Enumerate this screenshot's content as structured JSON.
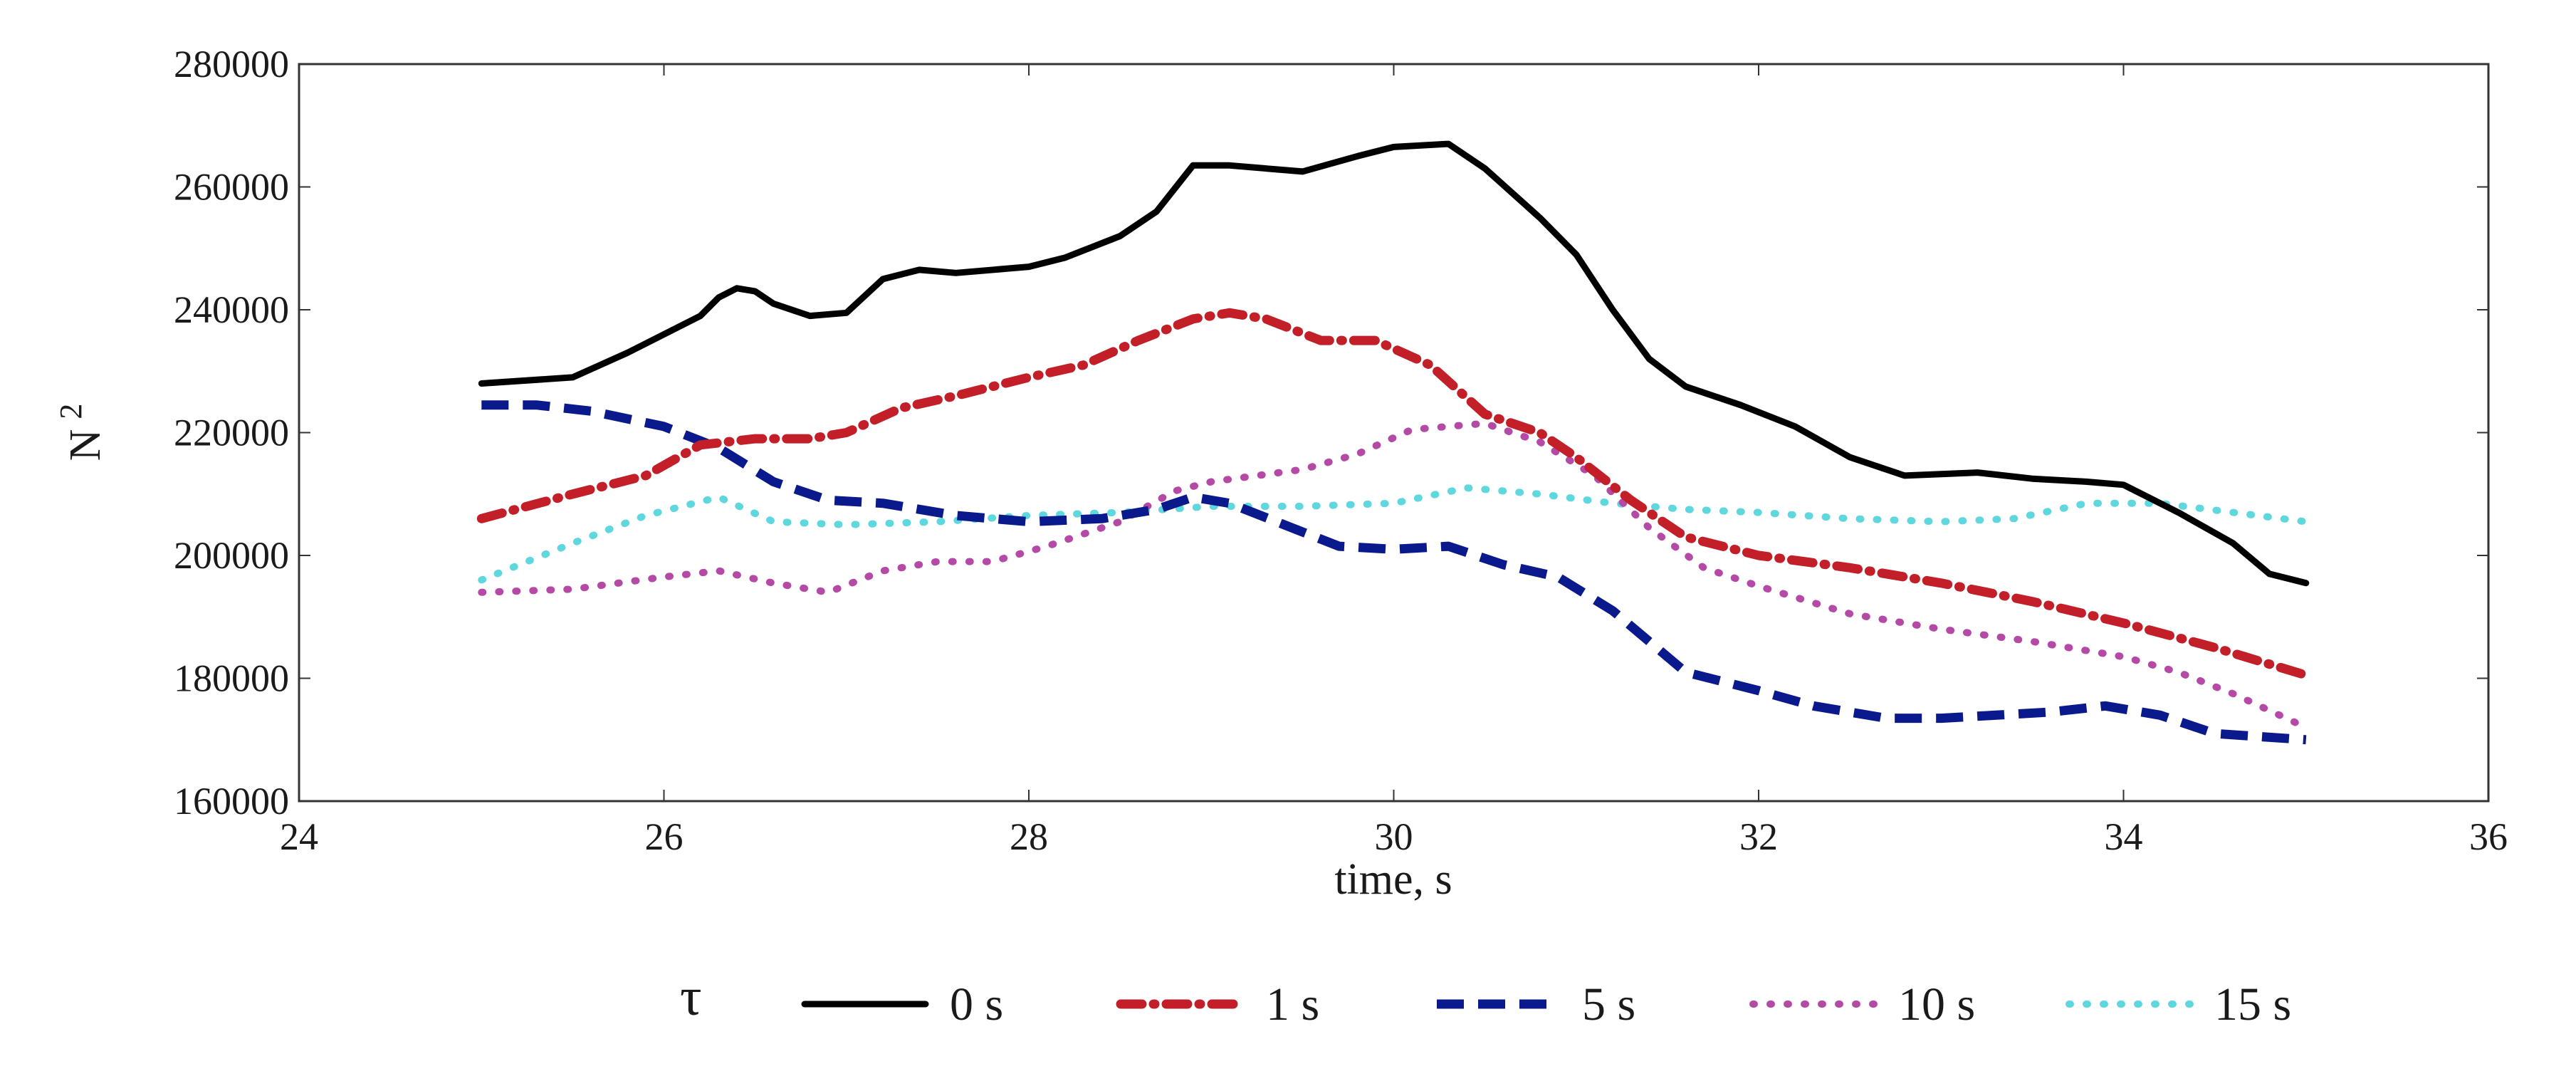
{
  "chart_data": {
    "type": "line",
    "title": "",
    "xlabel": "time, s",
    "ylabel": "N",
    "ylabel_superscript": "2",
    "xlim": [
      24,
      36
    ],
    "ylim": [
      160000,
      280000
    ],
    "xticks": [
      24,
      26,
      28,
      30,
      32,
      34,
      36
    ],
    "yticks": [
      160000,
      180000,
      200000,
      220000,
      240000,
      260000,
      280000
    ],
    "grid": false,
    "legend": {
      "title": "τ",
      "placement": "bottom",
      "entries": [
        "0 s",
        "1 s",
        "5 s",
        "10 s",
        "15 s"
      ]
    },
    "series": [
      {
        "name": "0 s",
        "color": "#000000",
        "style": "solid",
        "points": [
          [
            25,
            228000
          ],
          [
            25.5,
            229000
          ],
          [
            25.8,
            233000
          ],
          [
            26,
            236000
          ],
          [
            26.2,
            239000
          ],
          [
            26.3,
            242000
          ],
          [
            26.4,
            243500
          ],
          [
            26.5,
            243000
          ],
          [
            26.6,
            241000
          ],
          [
            26.8,
            239000
          ],
          [
            27,
            239500
          ],
          [
            27.2,
            245000
          ],
          [
            27.4,
            246500
          ],
          [
            27.6,
            246000
          ],
          [
            28,
            247000
          ],
          [
            28.2,
            248500
          ],
          [
            28.5,
            252000
          ],
          [
            28.7,
            256000
          ],
          [
            28.9,
            263500
          ],
          [
            29.1,
            263500
          ],
          [
            29.5,
            262500
          ],
          [
            29.8,
            265000
          ],
          [
            30,
            266500
          ],
          [
            30.3,
            267000
          ],
          [
            30.5,
            263000
          ],
          [
            30.8,
            255000
          ],
          [
            31,
            249000
          ],
          [
            31.2,
            240000
          ],
          [
            31.4,
            232000
          ],
          [
            31.6,
            227500
          ],
          [
            31.9,
            224500
          ],
          [
            32.2,
            221000
          ],
          [
            32.5,
            216000
          ],
          [
            32.8,
            213000
          ],
          [
            33.2,
            213500
          ],
          [
            33.5,
            212500
          ],
          [
            33.8,
            212000
          ],
          [
            34,
            211500
          ],
          [
            34.3,
            207000
          ],
          [
            34.6,
            202000
          ],
          [
            34.8,
            197000
          ],
          [
            35,
            195500
          ]
        ]
      },
      {
        "name": "1 s",
        "color": "#c21f28",
        "style": "dash-dot",
        "points": [
          [
            25,
            206000
          ],
          [
            25.5,
            210000
          ],
          [
            25.9,
            213000
          ],
          [
            26.2,
            218000
          ],
          [
            26.5,
            219000
          ],
          [
            26.8,
            219000
          ],
          [
            27,
            220000
          ],
          [
            27.3,
            224000
          ],
          [
            27.6,
            226000
          ],
          [
            28,
            229000
          ],
          [
            28.3,
            231000
          ],
          [
            28.6,
            235000
          ],
          [
            28.9,
            238500
          ],
          [
            29.1,
            239500
          ],
          [
            29.3,
            238500
          ],
          [
            29.6,
            235000
          ],
          [
            29.9,
            235000
          ],
          [
            30.2,
            231000
          ],
          [
            30.5,
            223000
          ],
          [
            30.8,
            220000
          ],
          [
            31,
            216000
          ],
          [
            31.3,
            209000
          ],
          [
            31.6,
            203000
          ],
          [
            32,
            200000
          ],
          [
            32.5,
            198000
          ],
          [
            33,
            195500
          ],
          [
            33.5,
            192500
          ],
          [
            34,
            189000
          ],
          [
            34.5,
            185000
          ],
          [
            35,
            180500
          ]
        ]
      },
      {
        "name": "5 s",
        "color": "#0a1a8c",
        "style": "dashed",
        "points": [
          [
            25,
            224500
          ],
          [
            25.3,
            224500
          ],
          [
            25.6,
            223500
          ],
          [
            26,
            221000
          ],
          [
            26.3,
            217500
          ],
          [
            26.6,
            212000
          ],
          [
            26.9,
            209000
          ],
          [
            27.2,
            208500
          ],
          [
            27.6,
            206500
          ],
          [
            28,
            205500
          ],
          [
            28.4,
            206000
          ],
          [
            28.7,
            207500
          ],
          [
            28.9,
            209500
          ],
          [
            29.1,
            208500
          ],
          [
            29.4,
            205000
          ],
          [
            29.7,
            201500
          ],
          [
            30,
            201000
          ],
          [
            30.3,
            201500
          ],
          [
            30.6,
            198500
          ],
          [
            30.9,
            196500
          ],
          [
            31.2,
            191000
          ],
          [
            31.4,
            186000
          ],
          [
            31.6,
            181000
          ],
          [
            32,
            178000
          ],
          [
            32.3,
            175500
          ],
          [
            32.7,
            173500
          ],
          [
            33,
            173500
          ],
          [
            33.3,
            174000
          ],
          [
            33.6,
            174500
          ],
          [
            33.9,
            175500
          ],
          [
            34.2,
            174000
          ],
          [
            34.5,
            171000
          ],
          [
            35,
            170000
          ]
        ]
      },
      {
        "name": "10 s",
        "color": "#b44aa6",
        "style": "dotted",
        "points": [
          [
            25,
            194000
          ],
          [
            25.5,
            194500
          ],
          [
            26,
            196500
          ],
          [
            26.3,
            197500
          ],
          [
            26.6,
            195500
          ],
          [
            26.9,
            194000
          ],
          [
            27.2,
            197500
          ],
          [
            27.5,
            199000
          ],
          [
            27.8,
            199000
          ],
          [
            28.1,
            201500
          ],
          [
            28.5,
            205500
          ],
          [
            28.8,
            210500
          ],
          [
            29,
            212000
          ],
          [
            29.5,
            214000
          ],
          [
            29.8,
            216500
          ],
          [
            30.1,
            220500
          ],
          [
            30.5,
            221500
          ],
          [
            30.8,
            218500
          ],
          [
            31.1,
            213000
          ],
          [
            31.4,
            204500
          ],
          [
            31.7,
            198000
          ],
          [
            32,
            195000
          ],
          [
            32.5,
            190500
          ],
          [
            33,
            188000
          ],
          [
            33.5,
            186000
          ],
          [
            34,
            183500
          ],
          [
            34.3,
            181000
          ],
          [
            34.6,
            177500
          ],
          [
            35,
            172000
          ]
        ]
      },
      {
        "name": "15 s",
        "color": "#5fd7de",
        "style": "dotted",
        "points": [
          [
            25,
            196000
          ],
          [
            25.5,
            202000
          ],
          [
            25.9,
            206500
          ],
          [
            26.3,
            209500
          ],
          [
            26.6,
            205500
          ],
          [
            27,
            205000
          ],
          [
            27.5,
            205500
          ],
          [
            28,
            206500
          ],
          [
            28.5,
            207000
          ],
          [
            29,
            208000
          ],
          [
            29.5,
            208000
          ],
          [
            30,
            208500
          ],
          [
            30.4,
            211000
          ],
          [
            30.8,
            210000
          ],
          [
            31.2,
            208500
          ],
          [
            31.6,
            207500
          ],
          [
            32,
            207000
          ],
          [
            32.5,
            206000
          ],
          [
            33,
            205500
          ],
          [
            33.4,
            206000
          ],
          [
            33.8,
            208500
          ],
          [
            34.2,
            208500
          ],
          [
            34.6,
            207000
          ],
          [
            35,
            205500
          ]
        ]
      }
    ]
  }
}
